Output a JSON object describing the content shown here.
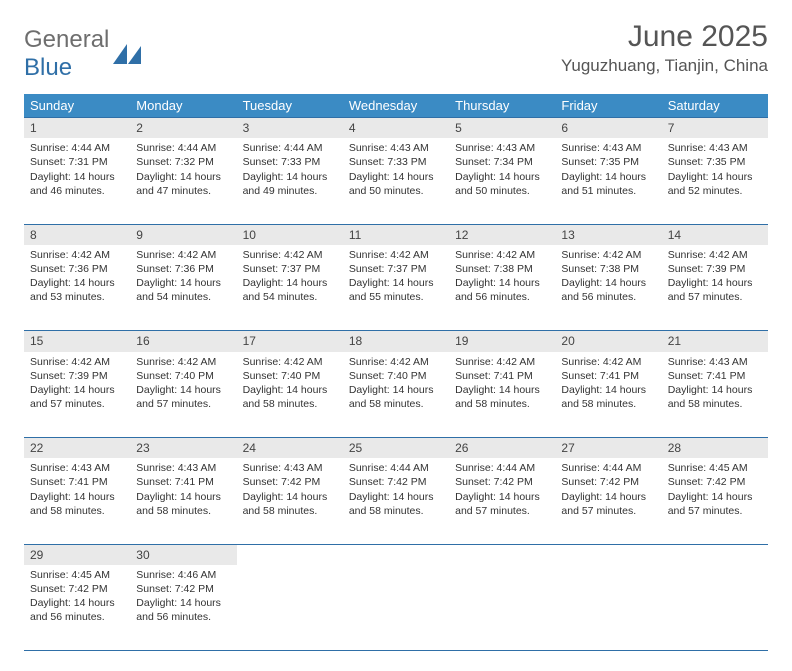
{
  "brand": {
    "part1": "General",
    "part2": "Blue",
    "logo_color": "#2f6fa7"
  },
  "title": "June 2025",
  "location": "Yuguzhuang, Tianjin, China",
  "colors": {
    "header_bg": "#3b8bc4",
    "border": "#2f6fa7",
    "daynum_bg": "#e9e9e9"
  },
  "weekdays": [
    "Sunday",
    "Monday",
    "Tuesday",
    "Wednesday",
    "Thursday",
    "Friday",
    "Saturday"
  ],
  "weeks": [
    [
      {
        "n": "1",
        "sr": "4:44 AM",
        "ss": "7:31 PM",
        "dl": "14 hours and 46 minutes."
      },
      {
        "n": "2",
        "sr": "4:44 AM",
        "ss": "7:32 PM",
        "dl": "14 hours and 47 minutes."
      },
      {
        "n": "3",
        "sr": "4:44 AM",
        "ss": "7:33 PM",
        "dl": "14 hours and 49 minutes."
      },
      {
        "n": "4",
        "sr": "4:43 AM",
        "ss": "7:33 PM",
        "dl": "14 hours and 50 minutes."
      },
      {
        "n": "5",
        "sr": "4:43 AM",
        "ss": "7:34 PM",
        "dl": "14 hours and 50 minutes."
      },
      {
        "n": "6",
        "sr": "4:43 AM",
        "ss": "7:35 PM",
        "dl": "14 hours and 51 minutes."
      },
      {
        "n": "7",
        "sr": "4:43 AM",
        "ss": "7:35 PM",
        "dl": "14 hours and 52 minutes."
      }
    ],
    [
      {
        "n": "8",
        "sr": "4:42 AM",
        "ss": "7:36 PM",
        "dl": "14 hours and 53 minutes."
      },
      {
        "n": "9",
        "sr": "4:42 AM",
        "ss": "7:36 PM",
        "dl": "14 hours and 54 minutes."
      },
      {
        "n": "10",
        "sr": "4:42 AM",
        "ss": "7:37 PM",
        "dl": "14 hours and 54 minutes."
      },
      {
        "n": "11",
        "sr": "4:42 AM",
        "ss": "7:37 PM",
        "dl": "14 hours and 55 minutes."
      },
      {
        "n": "12",
        "sr": "4:42 AM",
        "ss": "7:38 PM",
        "dl": "14 hours and 56 minutes."
      },
      {
        "n": "13",
        "sr": "4:42 AM",
        "ss": "7:38 PM",
        "dl": "14 hours and 56 minutes."
      },
      {
        "n": "14",
        "sr": "4:42 AM",
        "ss": "7:39 PM",
        "dl": "14 hours and 57 minutes."
      }
    ],
    [
      {
        "n": "15",
        "sr": "4:42 AM",
        "ss": "7:39 PM",
        "dl": "14 hours and 57 minutes."
      },
      {
        "n": "16",
        "sr": "4:42 AM",
        "ss": "7:40 PM",
        "dl": "14 hours and 57 minutes."
      },
      {
        "n": "17",
        "sr": "4:42 AM",
        "ss": "7:40 PM",
        "dl": "14 hours and 58 minutes."
      },
      {
        "n": "18",
        "sr": "4:42 AM",
        "ss": "7:40 PM",
        "dl": "14 hours and 58 minutes."
      },
      {
        "n": "19",
        "sr": "4:42 AM",
        "ss": "7:41 PM",
        "dl": "14 hours and 58 minutes."
      },
      {
        "n": "20",
        "sr": "4:42 AM",
        "ss": "7:41 PM",
        "dl": "14 hours and 58 minutes."
      },
      {
        "n": "21",
        "sr": "4:43 AM",
        "ss": "7:41 PM",
        "dl": "14 hours and 58 minutes."
      }
    ],
    [
      {
        "n": "22",
        "sr": "4:43 AM",
        "ss": "7:41 PM",
        "dl": "14 hours and 58 minutes."
      },
      {
        "n": "23",
        "sr": "4:43 AM",
        "ss": "7:41 PM",
        "dl": "14 hours and 58 minutes."
      },
      {
        "n": "24",
        "sr": "4:43 AM",
        "ss": "7:42 PM",
        "dl": "14 hours and 58 minutes."
      },
      {
        "n": "25",
        "sr": "4:44 AM",
        "ss": "7:42 PM",
        "dl": "14 hours and 58 minutes."
      },
      {
        "n": "26",
        "sr": "4:44 AM",
        "ss": "7:42 PM",
        "dl": "14 hours and 57 minutes."
      },
      {
        "n": "27",
        "sr": "4:44 AM",
        "ss": "7:42 PM",
        "dl": "14 hours and 57 minutes."
      },
      {
        "n": "28",
        "sr": "4:45 AM",
        "ss": "7:42 PM",
        "dl": "14 hours and 57 minutes."
      }
    ],
    [
      {
        "n": "29",
        "sr": "4:45 AM",
        "ss": "7:42 PM",
        "dl": "14 hours and 56 minutes."
      },
      {
        "n": "30",
        "sr": "4:46 AM",
        "ss": "7:42 PM",
        "dl": "14 hours and 56 minutes."
      },
      null,
      null,
      null,
      null,
      null
    ]
  ],
  "labels": {
    "sunrise": "Sunrise: ",
    "sunset": "Sunset: ",
    "daylight": "Daylight: "
  }
}
